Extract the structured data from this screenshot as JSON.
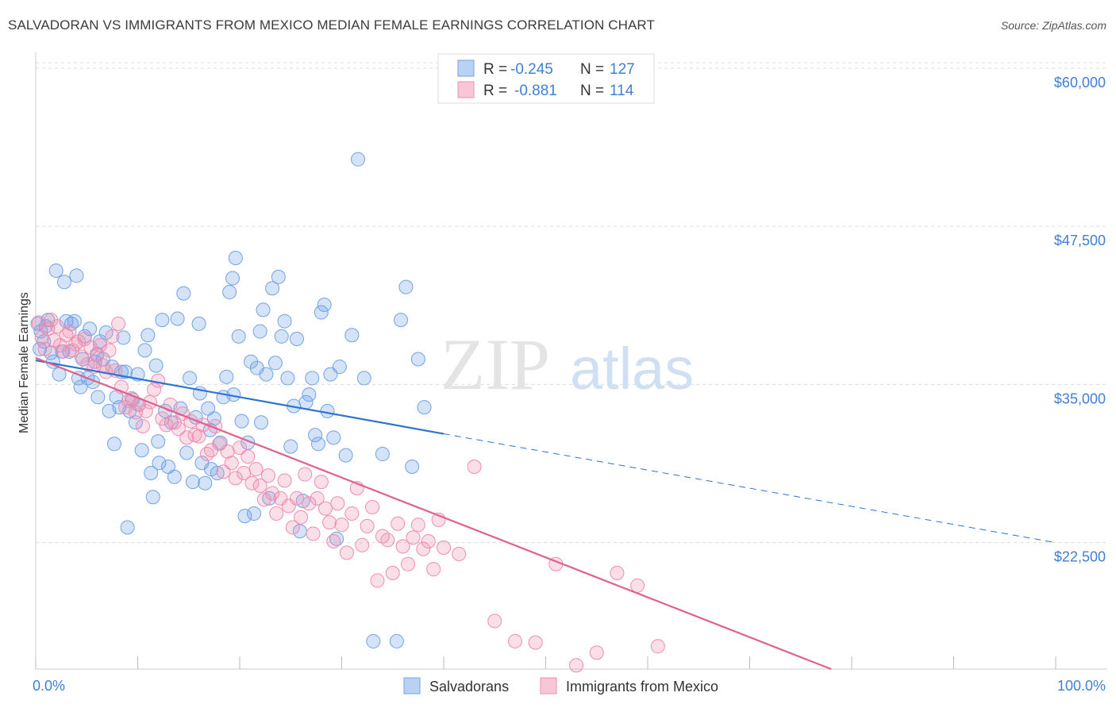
{
  "title": "SALVADORAN VS IMMIGRANTS FROM MEXICO MEDIAN FEMALE EARNINGS CORRELATION CHART",
  "source": "Source: ZipAtlas.com",
  "watermark": {
    "zip": "ZIP",
    "atlas": "atlas"
  },
  "colors": {
    "blue": "#6fa3e8",
    "blue_line": "#2e74d0",
    "pink": "#f08cae",
    "pink_line": "#e0608e",
    "tick_text": "#3f7fd6"
  },
  "chart_data": {
    "type": "scatter",
    "title": "SALVADORAN VS IMMIGRANTS FROM MEXICO MEDIAN FEMALE EARNINGS CORRELATION CHART",
    "xlabel": "",
    "ylabel": "Median Female Earnings",
    "xlim": [
      0,
      100
    ],
    "ylim": [
      12500,
      61250
    ],
    "x_tick_labels": {
      "left": "0.0%",
      "right": "100.0%"
    },
    "y_ticks": [
      {
        "value": 22500,
        "label": "$22,500"
      },
      {
        "value": 35000,
        "label": "$35,000"
      },
      {
        "value": 47500,
        "label": "$47,500"
      },
      {
        "value": 60000,
        "label": "$60,000"
      }
    ],
    "grid": true,
    "legend_placement": "top-center",
    "stats": [
      {
        "r_label": "R =",
        "r": "-0.245",
        "n_label": "N =",
        "n": "127"
      },
      {
        "r_label": "R =",
        "r": "-0.881",
        "n_label": "N =",
        "n": "114"
      }
    ],
    "series": [
      {
        "name": "Salvadorans",
        "color": "#6fa3e8",
        "trend": {
          "x0": 0,
          "y0": 36900,
          "x1": 40,
          "y1": 31100,
          "dashed_to_x": 100,
          "dashed_to_y": 22500
        },
        "points": [
          [
            0.2,
            39800
          ],
          [
            0.4,
            37800
          ],
          [
            0.5,
            39200
          ],
          [
            0.8,
            38400
          ],
          [
            1.0,
            39600
          ],
          [
            1.2,
            40100
          ],
          [
            1.5,
            37500
          ],
          [
            1.7,
            36800
          ],
          [
            2.0,
            44000
          ],
          [
            2.3,
            35800
          ],
          [
            2.6,
            37600
          ],
          [
            2.8,
            43100
          ],
          [
            3.0,
            40000
          ],
          [
            3.3,
            37600
          ],
          [
            3.5,
            39800
          ],
          [
            3.8,
            40000
          ],
          [
            4.0,
            43600
          ],
          [
            4.2,
            35500
          ],
          [
            4.4,
            34800
          ],
          [
            4.6,
            37000
          ],
          [
            4.8,
            38800
          ],
          [
            5.1,
            35500
          ],
          [
            5.3,
            39400
          ],
          [
            5.6,
            35200
          ],
          [
            5.8,
            36800
          ],
          [
            6.0,
            37400
          ],
          [
            6.3,
            38400
          ],
          [
            6.6,
            37000
          ],
          [
            6.9,
            39100
          ],
          [
            7.2,
            32900
          ],
          [
            7.5,
            36400
          ],
          [
            7.7,
            30300
          ],
          [
            7.9,
            34000
          ],
          [
            8.2,
            33200
          ],
          [
            8.4,
            36000
          ],
          [
            8.6,
            38700
          ],
          [
            8.8,
            36000
          ],
          [
            9.0,
            23700
          ],
          [
            9.2,
            32900
          ],
          [
            9.5,
            33800
          ],
          [
            9.8,
            32000
          ],
          [
            10.1,
            33400
          ],
          [
            10.4,
            29800
          ],
          [
            10.7,
            37700
          ],
          [
            11.0,
            38900
          ],
          [
            11.3,
            28000
          ],
          [
            11.5,
            26100
          ],
          [
            11.8,
            36500
          ],
          [
            12.1,
            28800
          ],
          [
            12.4,
            40100
          ],
          [
            12.7,
            32900
          ],
          [
            13.0,
            28500
          ],
          [
            13.3,
            32000
          ],
          [
            13.6,
            27700
          ],
          [
            13.9,
            40200
          ],
          [
            14.2,
            33100
          ],
          [
            14.5,
            42200
          ],
          [
            14.8,
            29600
          ],
          [
            15.1,
            35500
          ],
          [
            15.4,
            27300
          ],
          [
            15.7,
            32400
          ],
          [
            16.0,
            39800
          ],
          [
            16.3,
            28800
          ],
          [
            16.6,
            27200
          ],
          [
            16.9,
            33100
          ],
          [
            17.2,
            28300
          ],
          [
            17.5,
            32300
          ],
          [
            17.8,
            28000
          ],
          [
            18.1,
            30400
          ],
          [
            18.4,
            34000
          ],
          [
            18.7,
            35600
          ],
          [
            19.0,
            42300
          ],
          [
            19.3,
            43400
          ],
          [
            19.6,
            45000
          ],
          [
            19.9,
            38800
          ],
          [
            20.2,
            32100
          ],
          [
            20.5,
            24600
          ],
          [
            20.8,
            30400
          ],
          [
            21.1,
            36800
          ],
          [
            21.4,
            24800
          ],
          [
            21.7,
            36300
          ],
          [
            22.0,
            39200
          ],
          [
            22.3,
            40900
          ],
          [
            22.6,
            35800
          ],
          [
            22.9,
            26000
          ],
          [
            23.2,
            42600
          ],
          [
            23.5,
            36700
          ],
          [
            23.8,
            43500
          ],
          [
            24.1,
            38800
          ],
          [
            24.4,
            40000
          ],
          [
            24.7,
            35500
          ],
          [
            25.0,
            30100
          ],
          [
            25.3,
            33300
          ],
          [
            25.6,
            38600
          ],
          [
            25.9,
            23400
          ],
          [
            26.2,
            25800
          ],
          [
            26.5,
            33600
          ],
          [
            26.8,
            34200
          ],
          [
            27.1,
            35500
          ],
          [
            27.4,
            31000
          ],
          [
            27.7,
            30300
          ],
          [
            28.0,
            40700
          ],
          [
            28.3,
            41300
          ],
          [
            28.6,
            32900
          ],
          [
            28.9,
            35800
          ],
          [
            29.2,
            30800
          ],
          [
            29.5,
            22800
          ],
          [
            29.8,
            36400
          ],
          [
            30.4,
            29400
          ],
          [
            31.0,
            38900
          ],
          [
            31.6,
            52800
          ],
          [
            32.2,
            35500
          ],
          [
            33.1,
            14700
          ],
          [
            34.0,
            29500
          ],
          [
            35.4,
            14700
          ],
          [
            35.8,
            40100
          ],
          [
            36.3,
            42700
          ],
          [
            36.9,
            28500
          ],
          [
            37.5,
            37000
          ],
          [
            38.1,
            33200
          ],
          [
            6.1,
            34000
          ],
          [
            10.0,
            35800
          ],
          [
            12.0,
            30500
          ],
          [
            16.1,
            34300
          ],
          [
            17.1,
            31400
          ],
          [
            19.4,
            34200
          ],
          [
            22.1,
            32000
          ]
        ]
      },
      {
        "name": "Immigrants from Mexico",
        "color": "#f08cae",
        "trend": {
          "x0": 0,
          "y0": 37100,
          "x1": 78,
          "y1": 12500
        },
        "points": [
          [
            0.3,
            39900
          ],
          [
            0.6,
            38700
          ],
          [
            0.9,
            37800
          ],
          [
            1.2,
            39400
          ],
          [
            1.5,
            40100
          ],
          [
            1.8,
            38500
          ],
          [
            2.1,
            39600
          ],
          [
            2.4,
            38100
          ],
          [
            2.7,
            37600
          ],
          [
            3.0,
            38900
          ],
          [
            3.3,
            39200
          ],
          [
            3.6,
            37700
          ],
          [
            3.9,
            38200
          ],
          [
            4.2,
            38400
          ],
          [
            4.5,
            37200
          ],
          [
            4.8,
            38600
          ],
          [
            5.1,
            36600
          ],
          [
            5.4,
            37900
          ],
          [
            5.7,
            36400
          ],
          [
            6.0,
            37300
          ],
          [
            6.3,
            38100
          ],
          [
            6.6,
            36500
          ],
          [
            6.9,
            36000
          ],
          [
            7.2,
            37700
          ],
          [
            7.5,
            38800
          ],
          [
            7.8,
            36100
          ],
          [
            8.1,
            39800
          ],
          [
            8.4,
            34800
          ],
          [
            8.8,
            33200
          ],
          [
            9.1,
            33700
          ],
          [
            9.4,
            33900
          ],
          [
            9.8,
            32800
          ],
          [
            10.1,
            33400
          ],
          [
            10.5,
            31700
          ],
          [
            10.8,
            32900
          ],
          [
            11.2,
            33600
          ],
          [
            11.6,
            34600
          ],
          [
            12.0,
            35300
          ],
          [
            12.4,
            32300
          ],
          [
            12.8,
            31800
          ],
          [
            13.2,
            33400
          ],
          [
            13.6,
            32000
          ],
          [
            14.0,
            31500
          ],
          [
            14.4,
            32700
          ],
          [
            14.8,
            30800
          ],
          [
            15.2,
            32100
          ],
          [
            15.6,
            31000
          ],
          [
            16.0,
            30900
          ],
          [
            16.4,
            31800
          ],
          [
            16.8,
            29500
          ],
          [
            17.2,
            29800
          ],
          [
            17.6,
            31700
          ],
          [
            18.0,
            30300
          ],
          [
            18.4,
            28100
          ],
          [
            18.8,
            29700
          ],
          [
            19.2,
            28800
          ],
          [
            19.6,
            27600
          ],
          [
            20.0,
            30000
          ],
          [
            20.4,
            28000
          ],
          [
            20.8,
            29300
          ],
          [
            21.2,
            27200
          ],
          [
            21.6,
            28300
          ],
          [
            22.0,
            27000
          ],
          [
            22.4,
            25900
          ],
          [
            22.8,
            27800
          ],
          [
            23.2,
            26400
          ],
          [
            23.6,
            24800
          ],
          [
            24.0,
            26000
          ],
          [
            24.4,
            27400
          ],
          [
            24.8,
            25400
          ],
          [
            25.2,
            23700
          ],
          [
            25.6,
            26000
          ],
          [
            26.0,
            24500
          ],
          [
            26.4,
            27900
          ],
          [
            26.8,
            25600
          ],
          [
            27.2,
            23200
          ],
          [
            27.6,
            26000
          ],
          [
            28.0,
            27300
          ],
          [
            28.4,
            25200
          ],
          [
            28.8,
            24100
          ],
          [
            29.2,
            22600
          ],
          [
            29.6,
            25600
          ],
          [
            30.0,
            23900
          ],
          [
            30.5,
            21700
          ],
          [
            31.0,
            24800
          ],
          [
            31.5,
            26800
          ],
          [
            32.0,
            22300
          ],
          [
            32.5,
            23800
          ],
          [
            33.0,
            25300
          ],
          [
            33.5,
            19500
          ],
          [
            34.0,
            23000
          ],
          [
            34.5,
            22700
          ],
          [
            35.0,
            20100
          ],
          [
            35.5,
            24000
          ],
          [
            36.0,
            22200
          ],
          [
            36.5,
            20800
          ],
          [
            37.0,
            22900
          ],
          [
            37.5,
            23900
          ],
          [
            38.0,
            22000
          ],
          [
            38.5,
            22600
          ],
          [
            39.0,
            20400
          ],
          [
            39.5,
            24300
          ],
          [
            40.0,
            22100
          ],
          [
            41.5,
            21600
          ],
          [
            43.0,
            28500
          ],
          [
            45.0,
            16300
          ],
          [
            47.0,
            14700
          ],
          [
            49.0,
            14600
          ],
          [
            51.0,
            20800
          ],
          [
            53.0,
            12800
          ],
          [
            55.0,
            13800
          ],
          [
            57.0,
            20100
          ],
          [
            59.0,
            19100
          ],
          [
            61.0,
            14300
          ]
        ]
      }
    ]
  },
  "bottom_legend": {
    "series1": "Salvadorans",
    "series2": "Immigrants from Mexico"
  }
}
